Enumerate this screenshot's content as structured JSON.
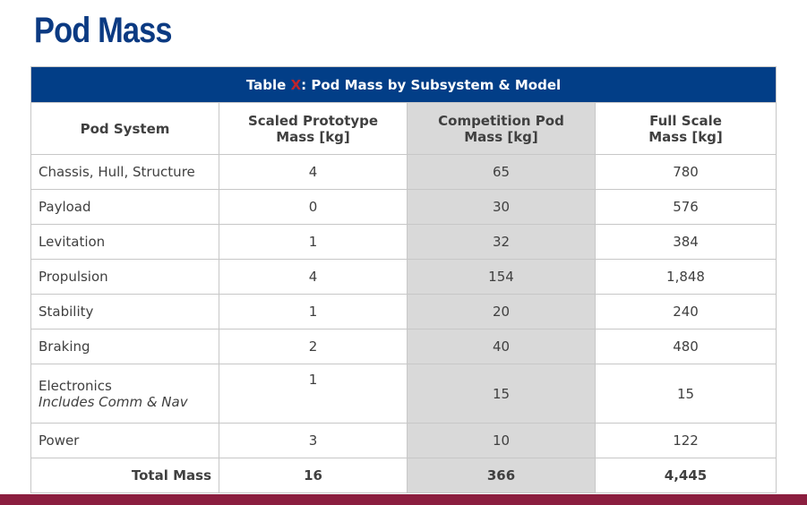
{
  "title": "Pod Mass",
  "table": {
    "caption_prefix": "Table ",
    "caption_mark": "X",
    "caption_suffix": ": Pod Mass by Subsystem & Model",
    "headers": {
      "col1": "Pod System",
      "col2_line1": "Scaled Prototype",
      "col2_line2": "Mass [kg]",
      "col3_line1": "Competition Pod",
      "col3_line2": "Mass [kg]",
      "col4_line1": "Full Scale",
      "col4_line2": "Mass [kg]"
    },
    "rows": [
      {
        "system": "Chassis, Hull, Structure",
        "prototype": "4",
        "competition": "65",
        "full": "780"
      },
      {
        "system": "Payload",
        "prototype": "0",
        "competition": "30",
        "full": "576"
      },
      {
        "system": "Levitation",
        "prototype": "1",
        "competition": "32",
        "full": "384"
      },
      {
        "system": "Propulsion",
        "prototype": "4",
        "competition": "154",
        "full": "1,848"
      },
      {
        "system": "Stability",
        "prototype": "1",
        "competition": "20",
        "full": "240"
      },
      {
        "system": "Braking",
        "prototype": "2",
        "competition": "40",
        "full": "480"
      },
      {
        "system": "Electronics",
        "note": "Includes Comm & Nav",
        "prototype": "1",
        "competition": "15",
        "full": "15"
      },
      {
        "system": "Power",
        "prototype": "3",
        "competition": "10",
        "full": "122"
      }
    ],
    "total": {
      "label": "Total Mass",
      "prototype": "16",
      "competition": "366",
      "full": "4,445"
    }
  },
  "colors": {
    "title": "#0b3a82",
    "caption_bg": "#023e87",
    "caption_mark": "#c0242b",
    "shaded_column": "#d9d9d9",
    "footer_bar": "#8b1e3f"
  }
}
